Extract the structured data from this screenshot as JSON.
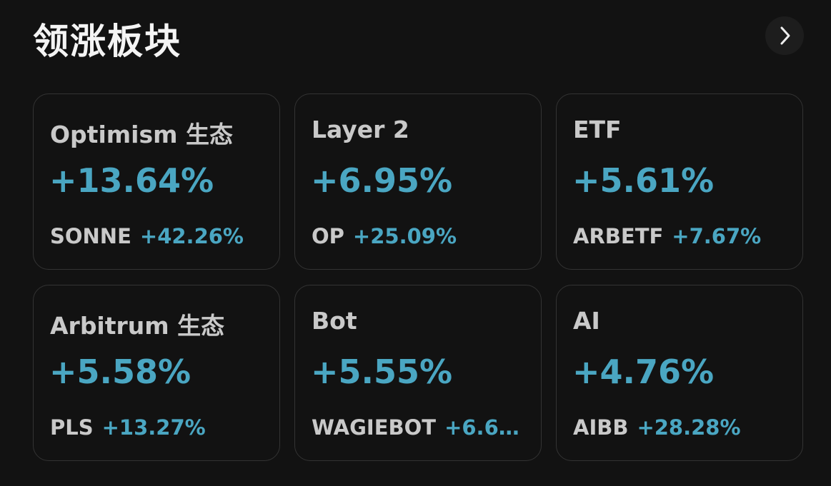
{
  "header": {
    "title": "领涨板块"
  },
  "cards": [
    {
      "name": "Optimism 生态",
      "change": "+13.64%",
      "token": "SONNE",
      "token_change": "+42.26%"
    },
    {
      "name": "Layer 2",
      "change": "+6.95%",
      "token": "OP",
      "token_change": "+25.09%"
    },
    {
      "name": "ETF",
      "change": "+5.61%",
      "token": "ARBETF",
      "token_change": "+7.67%"
    },
    {
      "name": "Arbitrum 生态",
      "change": "+5.58%",
      "token": "PLS",
      "token_change": "+13.27%"
    },
    {
      "name": "Bot",
      "change": "+5.55%",
      "token": "WAGIEBOT",
      "token_change": "+6.6…"
    },
    {
      "name": "AI",
      "change": "+4.76%",
      "token": "AIBB",
      "token_change": "+28.28%"
    }
  ]
}
